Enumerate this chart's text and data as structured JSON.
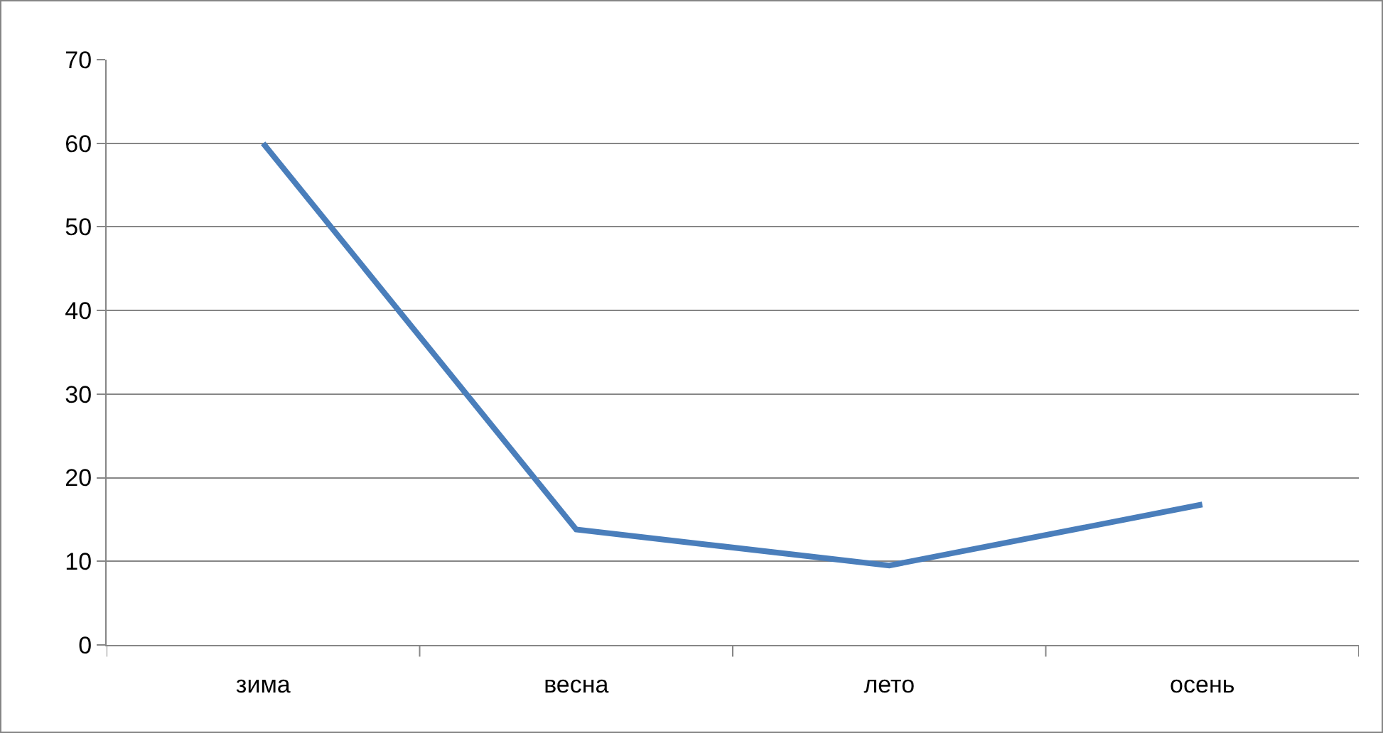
{
  "chart_data": {
    "type": "line",
    "categories": [
      "зима",
      "весна",
      "лето",
      "осень"
    ],
    "series": [
      {
        "color": "#4a7ebb",
        "values": [
          60,
          13.8,
          9.5,
          16.8
        ]
      }
    ],
    "ylim": [
      0,
      70
    ],
    "yticks": [
      0,
      10,
      20,
      30,
      40,
      50,
      60,
      70
    ],
    "grid": "y",
    "marker": "none",
    "line_style": "solid"
  }
}
